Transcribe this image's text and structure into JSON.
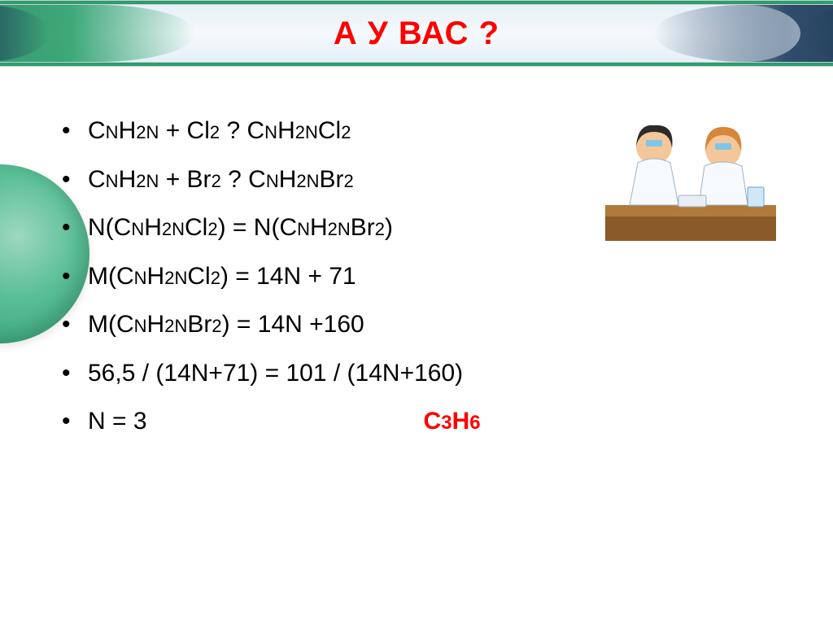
{
  "title": "А У ВАС ?",
  "colors": {
    "accent_green": "#2a9d6e",
    "accent_red": "#ff0000",
    "text": "#000000",
    "background": "#ffffff",
    "title_bg_light": "#e6f0f8",
    "navy": "#1b3a5e",
    "navy_dark": "#10223a"
  },
  "typography": {
    "title_fontsize_pt": 30,
    "body_fontsize_pt": 22,
    "font_family": "Arial"
  },
  "bullets": [
    {
      "parts": [
        {
          "t": "С",
          "cls": ""
        },
        {
          "t": "N",
          "cls": "n"
        },
        {
          "t": "H",
          "cls": ""
        },
        {
          "t": "2N",
          "cls": "n"
        },
        {
          "t": " + Cl",
          "cls": ""
        },
        {
          "t": "2",
          "cls": "s"
        },
        {
          "t": " ? С",
          "cls": ""
        },
        {
          "t": "N",
          "cls": "n"
        },
        {
          "t": "H",
          "cls": ""
        },
        {
          "t": "2N",
          "cls": "n"
        },
        {
          "t": "Cl",
          "cls": ""
        },
        {
          "t": "2",
          "cls": "s"
        }
      ]
    },
    {
      "parts": [
        {
          "t": "С",
          "cls": ""
        },
        {
          "t": "N",
          "cls": "n"
        },
        {
          "t": "H",
          "cls": ""
        },
        {
          "t": "2N",
          "cls": "n"
        },
        {
          "t": " + Br",
          "cls": ""
        },
        {
          "t": "2",
          "cls": "s"
        },
        {
          "t": " ? С",
          "cls": ""
        },
        {
          "t": "N",
          "cls": "n"
        },
        {
          "t": "H",
          "cls": ""
        },
        {
          "t": "2N",
          "cls": "n"
        },
        {
          "t": "Br",
          "cls": ""
        },
        {
          "t": "2",
          "cls": "s"
        }
      ]
    },
    {
      "parts": [
        {
          "t": "N(С",
          "cls": ""
        },
        {
          "t": "N",
          "cls": "n"
        },
        {
          "t": "H",
          "cls": ""
        },
        {
          "t": "2N",
          "cls": "n"
        },
        {
          "t": "Cl",
          "cls": ""
        },
        {
          "t": "2",
          "cls": "s"
        },
        {
          "t": ") = N(С",
          "cls": ""
        },
        {
          "t": "N",
          "cls": "n"
        },
        {
          "t": "H",
          "cls": ""
        },
        {
          "t": "2N",
          "cls": "n"
        },
        {
          "t": "Br",
          "cls": ""
        },
        {
          "t": "2",
          "cls": "s"
        },
        {
          "t": ")",
          "cls": ""
        }
      ]
    },
    {
      "parts": [
        {
          "t": "M(С",
          "cls": ""
        },
        {
          "t": "N",
          "cls": "n"
        },
        {
          "t": "H",
          "cls": ""
        },
        {
          "t": "2N",
          "cls": "n"
        },
        {
          "t": "Cl",
          "cls": ""
        },
        {
          "t": "2",
          "cls": "s"
        },
        {
          "t": ") = 14N + 71",
          "cls": ""
        }
      ]
    },
    {
      "parts": [
        {
          "t": "M(С",
          "cls": ""
        },
        {
          "t": "N",
          "cls": "n"
        },
        {
          "t": "H",
          "cls": ""
        },
        {
          "t": "2N",
          "cls": "n"
        },
        {
          "t": "Br",
          "cls": ""
        },
        {
          "t": "2",
          "cls": "s"
        },
        {
          "t": ") = 14N +160",
          "cls": ""
        }
      ]
    },
    {
      "parts": [
        {
          "t": "56,5 / (14N+71) = 101 / (14N+160)",
          "cls": ""
        }
      ]
    },
    {
      "parts": [
        {
          "t": "N = 3",
          "cls": ""
        }
      ],
      "answer": {
        "main": "С",
        "sub1": "3",
        "mid": "Н",
        "sub2": "6"
      }
    }
  ],
  "illustration": {
    "description": "two-lab-scientists",
    "desk_color": "#b07a3a",
    "coat_color": "#f6faff",
    "hair_colors": [
      "#2e2a28",
      "#d8863a"
    ],
    "flask_color": "#cfe8f7"
  }
}
